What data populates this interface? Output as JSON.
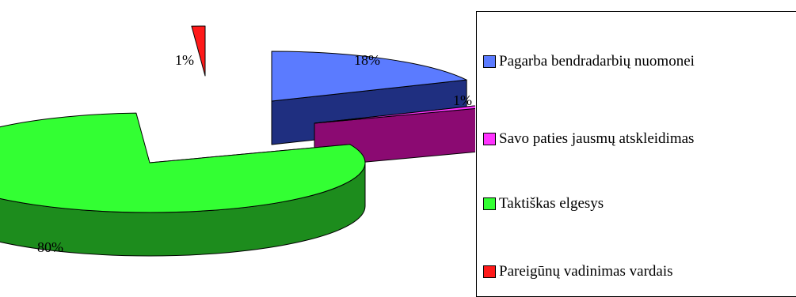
{
  "chart_data": {
    "type": "pie",
    "style": "3d-exploded",
    "categories": [
      "Pagarba bendradarbių nuomonei",
      "Savo paties jausmų atskleidimas",
      "Taktiškas elgesys",
      "Pareigūnų vadinimas vardais"
    ],
    "values": [
      18,
      1,
      80,
      1
    ],
    "value_labels": [
      "18%",
      "1%",
      "80%",
      "1%"
    ],
    "colors": [
      "#5b7bff",
      "#ff33ff",
      "#33ff33",
      "#ff1a1a"
    ],
    "side_colors": [
      "#1f2f80",
      "#8b0a72",
      "#1d8c1d",
      "#8b1010"
    ],
    "legend_placement": "right"
  }
}
